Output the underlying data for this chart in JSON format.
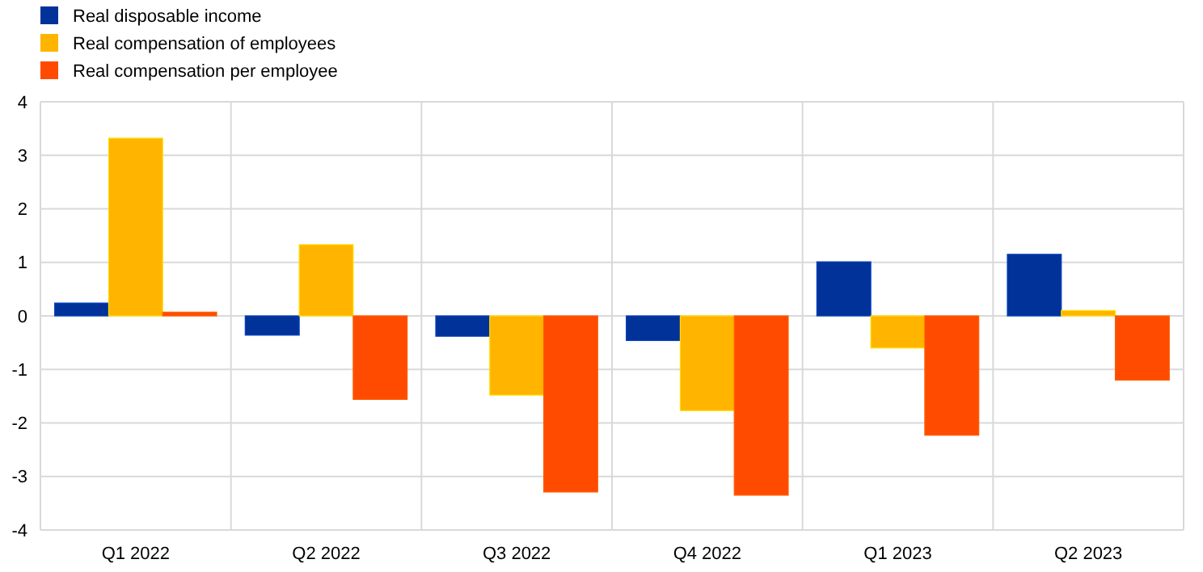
{
  "chart_data": {
    "type": "bar",
    "categories": [
      "Q1 2022",
      "Q2 2022",
      "Q3 2022",
      "Q4 2022",
      "Q1 2023",
      "Q2 2023"
    ],
    "series": [
      {
        "name": "Real disposable income",
        "color": "#003299",
        "values": [
          0.24,
          -0.36,
          -0.38,
          -0.46,
          1.01,
          1.15
        ]
      },
      {
        "name": "Real compensation of employees",
        "color": "#ffb400",
        "values": [
          3.32,
          1.33,
          -1.48,
          -1.77,
          -0.6,
          0.1
        ]
      },
      {
        "name": "Real compensation per employee",
        "color": "#ff4b00",
        "values": [
          0.07,
          -1.56,
          -3.29,
          -3.35,
          -2.23,
          -1.2
        ]
      }
    ],
    "ylim": [
      -4,
      4
    ],
    "yticks": [
      -4,
      -3,
      -2,
      -1,
      0,
      1,
      2,
      3,
      4
    ],
    "grid": true,
    "legend": "top left"
  }
}
